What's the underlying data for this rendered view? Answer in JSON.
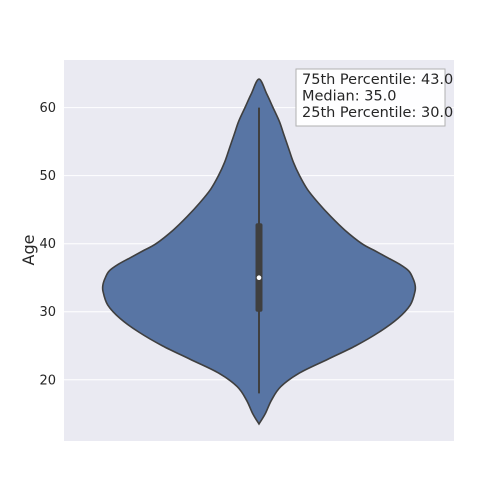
{
  "chart_data": {
    "type": "violin",
    "ylabel": "Age",
    "xlabel": "",
    "ylim": [
      11,
      67
    ],
    "yticks": [
      20,
      30,
      40,
      50,
      60
    ],
    "grid": true,
    "colors": {
      "background": "#eaeaf2",
      "violin_fill": "#5875a4",
      "violin_edge": "#3f3f3f",
      "box": "#3f3f3f",
      "median_dot": "#ffffff",
      "gridline": "#ffffff"
    },
    "stats": {
      "min": 18,
      "q1": 30,
      "median": 35,
      "q3": 43,
      "max": 60
    },
    "density_profile": [
      [
        13.5,
        0.0
      ],
      [
        15,
        0.04
      ],
      [
        17,
        0.08
      ],
      [
        19,
        0.14
      ],
      [
        21,
        0.26
      ],
      [
        23,
        0.44
      ],
      [
        25,
        0.62
      ],
      [
        27,
        0.77
      ],
      [
        29,
        0.89
      ],
      [
        31,
        0.97
      ],
      [
        33,
        1.0
      ],
      [
        34,
        1.0
      ],
      [
        35,
        0.985
      ],
      [
        36,
        0.96
      ],
      [
        37,
        0.9
      ],
      [
        38,
        0.82
      ],
      [
        39,
        0.74
      ],
      [
        40,
        0.66
      ],
      [
        42,
        0.55
      ],
      [
        44,
        0.46
      ],
      [
        46,
        0.38
      ],
      [
        48,
        0.31
      ],
      [
        50,
        0.26
      ],
      [
        52,
        0.22
      ],
      [
        54,
        0.19
      ],
      [
        56,
        0.16
      ],
      [
        58,
        0.13
      ],
      [
        60,
        0.09
      ],
      [
        62,
        0.05
      ],
      [
        64.2,
        0.0
      ]
    ],
    "annotation": {
      "lines": [
        "75th Percentile: 43.0",
        "Median: 35.0",
        "25th Percentile: 30.0"
      ]
    }
  }
}
